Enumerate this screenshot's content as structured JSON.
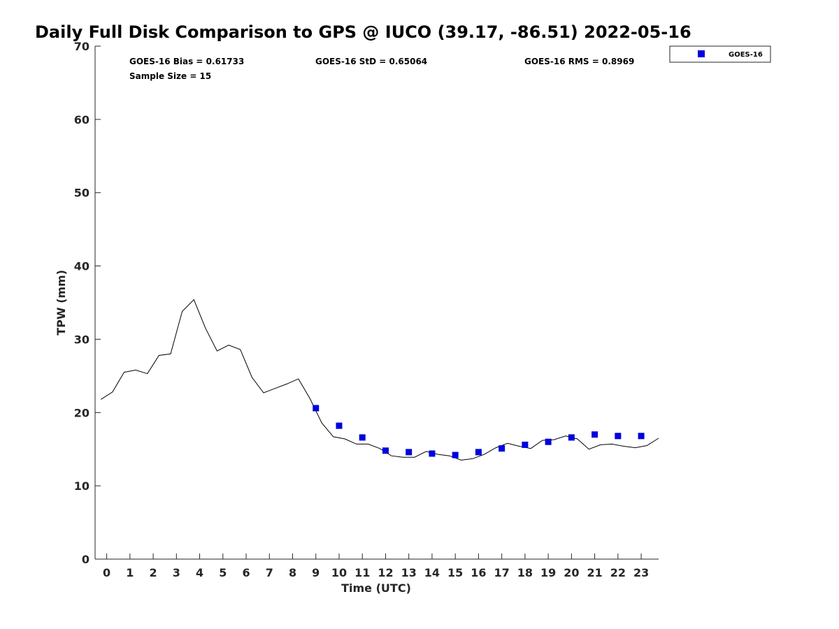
{
  "chart_data": {
    "type": "line",
    "title": "Daily Full Disk Comparison to GPS @ IUCO (39.17, -86.51) 2022-05-16",
    "xlabel": "Time (UTC)",
    "ylabel": "TPW (mm)",
    "xlim": [
      -0.5,
      23.75
    ],
    "ylim": [
      0,
      70
    ],
    "x_ticks": [
      0,
      1,
      2,
      3,
      4,
      5,
      6,
      7,
      8,
      9,
      10,
      11,
      12,
      13,
      14,
      15,
      16,
      17,
      18,
      19,
      20,
      21,
      22,
      23
    ],
    "y_ticks": [
      0,
      10,
      20,
      30,
      40,
      50,
      60,
      70
    ],
    "grid": false,
    "legend_position": "top-right",
    "colors": {
      "gps_line": "#000000",
      "goes16": "#0000dd"
    },
    "stats": {
      "bias": "GOES-16 Bias = 0.61733",
      "std": "GOES-16 StD = 0.65064",
      "rms": "GOES-16 RMS = 0.8969",
      "sample": "Sample Size = 15"
    },
    "series": [
      {
        "kind": "line",
        "x": [
          -0.25,
          0.25,
          0.75,
          1.25,
          1.75,
          2.25,
          2.75,
          3.25,
          3.75,
          4.25,
          4.75,
          5.25,
          5.75,
          6.25,
          6.75,
          7.25,
          7.75,
          8.25,
          8.75,
          9.25,
          9.75,
          10.25,
          10.75,
          11.25,
          11.75,
          12.25,
          12.75,
          13.25,
          13.75,
          14.25,
          14.75,
          15.25,
          15.75,
          16.25,
          16.75,
          17.25,
          17.75,
          18.25,
          18.75,
          19.25,
          19.75,
          20.25,
          20.75,
          21.25,
          21.75,
          22.25,
          22.75,
          23.25,
          23.75
        ],
        "values": [
          21.8,
          22.8,
          25.5,
          25.8,
          25.3,
          27.8,
          28.0,
          33.8,
          35.4,
          31.5,
          28.4,
          29.2,
          28.6,
          24.8,
          22.7,
          23.3,
          23.9,
          24.6,
          21.9,
          18.6,
          16.7,
          16.4,
          15.7,
          15.7,
          15.1,
          14.1,
          13.9,
          13.9,
          14.7,
          14.3,
          14.1,
          13.5,
          13.7,
          14.3,
          15.2,
          15.8,
          15.4,
          15.1,
          16.2,
          16.3,
          16.8,
          16.4,
          15.0,
          15.6,
          15.7,
          15.4,
          15.2,
          15.5,
          16.5
        ]
      },
      {
        "name": "GOES-16",
        "kind": "scatter",
        "x": [
          9,
          10,
          11,
          12,
          13,
          14,
          15,
          16,
          17,
          18,
          19,
          20,
          21,
          22,
          23
        ],
        "values": [
          20.6,
          18.2,
          16.6,
          14.8,
          14.6,
          14.4,
          14.2,
          14.6,
          15.1,
          15.6,
          16.0,
          16.6,
          17.0,
          16.8,
          16.8
        ]
      }
    ]
  }
}
